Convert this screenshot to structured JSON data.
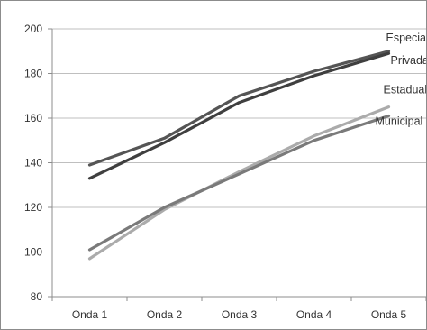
{
  "chart_data": {
    "type": "line",
    "title": "",
    "xlabel": "",
    "ylabel": "",
    "categories": [
      "Onda 1",
      "Onda 2",
      "Onda 3",
      "Onda 4",
      "Onda 5"
    ],
    "ylim": [
      80,
      200
    ],
    "yticks": [
      80,
      100,
      120,
      140,
      160,
      180,
      200
    ],
    "grid": "horizontal",
    "legend": "none (series labelled at line ends)",
    "series": [
      {
        "name": "Especial",
        "values": [
          139,
          151,
          170,
          181,
          190
        ],
        "color": "#555555"
      },
      {
        "name": "Privada",
        "values": [
          133,
          149,
          167,
          179,
          189
        ],
        "color": "#3f3f3f"
      },
      {
        "name": "Estadual",
        "values": [
          97,
          119,
          136,
          152,
          165
        ],
        "color": "#ababab"
      },
      {
        "name": "Municipal",
        "values": [
          101,
          120,
          135,
          150,
          161
        ],
        "color": "#7a7a7a"
      }
    ]
  }
}
